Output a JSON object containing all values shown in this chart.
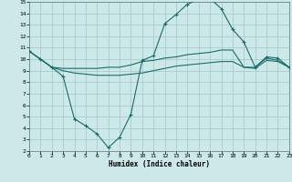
{
  "xlabel": "Humidex (Indice chaleur)",
  "ylabel": "",
  "bg_color": "#cce8e8",
  "grid_color": "#aacccc",
  "line_color": "#1a6b6b",
  "xmin": 0,
  "xmax": 23,
  "ymin": 2,
  "ymax": 15,
  "line1_x": [
    0,
    1,
    2,
    3,
    4,
    5,
    6,
    7,
    8,
    9,
    10,
    11,
    12,
    13,
    14,
    15,
    16,
    17,
    18,
    19,
    20,
    21,
    22,
    23
  ],
  "line1_y": [
    10.7,
    10.0,
    9.3,
    8.5,
    4.8,
    4.2,
    3.5,
    2.3,
    3.2,
    5.2,
    9.9,
    10.3,
    13.1,
    13.9,
    14.8,
    15.2,
    15.3,
    14.4,
    12.6,
    11.5,
    9.3,
    10.2,
    10.1,
    9.3
  ],
  "line2_x": [
    0,
    1,
    2,
    3,
    4,
    5,
    6,
    7,
    8,
    9,
    10,
    11,
    12,
    13,
    14,
    15,
    16,
    17,
    18,
    19,
    20,
    21,
    22,
    23
  ],
  "line2_y": [
    10.7,
    10.0,
    9.3,
    9.2,
    9.2,
    9.2,
    9.2,
    9.3,
    9.3,
    9.5,
    9.8,
    9.9,
    10.1,
    10.2,
    10.4,
    10.5,
    10.6,
    10.8,
    10.8,
    9.3,
    9.3,
    10.1,
    9.9,
    9.3
  ],
  "line3_x": [
    0,
    1,
    2,
    3,
    4,
    5,
    6,
    7,
    8,
    9,
    10,
    11,
    12,
    13,
    14,
    15,
    16,
    17,
    18,
    19,
    20,
    21,
    22,
    23
  ],
  "line3_y": [
    10.7,
    10.0,
    9.3,
    9.0,
    8.8,
    8.7,
    8.6,
    8.6,
    8.6,
    8.7,
    8.8,
    9.0,
    9.2,
    9.4,
    9.5,
    9.6,
    9.7,
    9.8,
    9.8,
    9.3,
    9.2,
    9.9,
    9.8,
    9.3
  ]
}
